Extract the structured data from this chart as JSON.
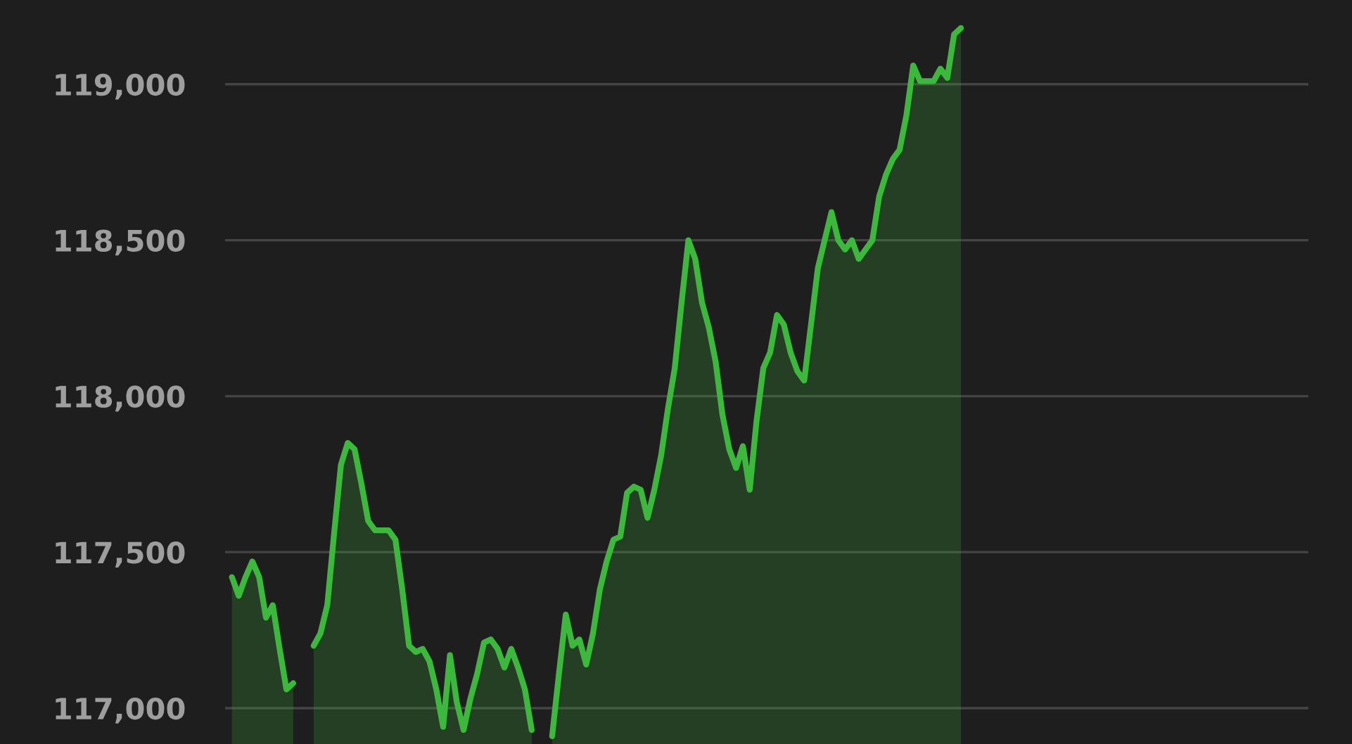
{
  "chart_data": {
    "type": "area",
    "categories": [
      null,
      null,
      null,
      null,
      null,
      null,
      null,
      null,
      null,
      null,
      null,
      null,
      null,
      null,
      null,
      null,
      null,
      null,
      null,
      null,
      null,
      null,
      null,
      null,
      null,
      null,
      null,
      null,
      null,
      null,
      null,
      null,
      null,
      null,
      null,
      null,
      null,
      null,
      null,
      null,
      null,
      null,
      null,
      null,
      null,
      null,
      null,
      null,
      null,
      null,
      null,
      null,
      null,
      null,
      null,
      null,
      null,
      null,
      null,
      null,
      null,
      null,
      null,
      null,
      null,
      null,
      null,
      null,
      null,
      null,
      null,
      null,
      null,
      null,
      null,
      null,
      null,
      null,
      null,
      null,
      null,
      null,
      null,
      null,
      null,
      null,
      null,
      null,
      null,
      null,
      null,
      null,
      null,
      null,
      null,
      null,
      null,
      null,
      null,
      null,
      null,
      null,
      null,
      null,
      null,
      null,
      null,
      null,
      null,
      null,
      null,
      null,
      null,
      null,
      null,
      null,
      null,
      null,
      null,
      null,
      null,
      null,
      null,
      null,
      null,
      null,
      null,
      null,
      null,
      null,
      null,
      null,
      null,
      null,
      null,
      null,
      null,
      null,
      null,
      null,
      null,
      null,
      null,
      null,
      null,
      null,
      null,
      null,
      null,
      null,
      null,
      null,
      null,
      null,
      null,
      null,
      null,
      null
    ],
    "series": [
      {
        "color": "#3cb83c",
        "values": [
          117420,
          117360,
          117420,
          117470,
          117420,
          117290,
          117330,
          117190,
          117060,
          117080,
          null,
          null,
          117200,
          117240,
          117330,
          117560,
          117780,
          117850,
          117830,
          117720,
          117600,
          117570,
          117570,
          117570,
          117540,
          117380,
          117200,
          117180,
          117190,
          117150,
          117060,
          116940,
          117170,
          117020,
          116930,
          117030,
          117110,
          117210,
          117220,
          117190,
          117130,
          117190,
          117130,
          117060,
          116930,
          null,
          null,
          116910,
          117110,
          117300,
          117200,
          117220,
          117140,
          117240,
          117380,
          117470,
          117540,
          117550,
          117690,
          117710,
          117700,
          117610,
          117700,
          117810,
          117960,
          118090,
          118300,
          118500,
          118440,
          118300,
          118220,
          118110,
          117940,
          117830,
          117770,
          117840,
          117700,
          117920,
          118090,
          118140,
          118260,
          118230,
          118140,
          118080,
          118050,
          118230,
          118410,
          118500,
          118590,
          118500,
          118470,
          118500,
          118440,
          118470,
          118500,
          118640,
          118710,
          118760,
          118790,
          118900,
          119060,
          119010,
          119010,
          119010,
          119050,
          119020,
          119160,
          119180,
          null,
          null,
          null,
          null,
          null,
          null,
          null,
          null,
          null,
          null,
          null,
          null,
          null,
          null,
          null,
          null,
          null,
          null,
          null,
          null,
          null,
          null,
          null,
          null,
          null,
          null,
          null,
          null,
          null,
          null,
          null,
          null,
          null,
          null,
          null,
          null,
          null,
          null,
          null,
          null,
          null,
          null,
          null,
          null,
          null,
          null,
          null,
          null,
          null,
          null
        ]
      }
    ],
    "ylim": [
      116885,
      119270
    ],
    "yticks": [
      {
        "value": 117000,
        "label": "117,000"
      },
      {
        "value": 117500,
        "label": "117,500"
      },
      {
        "value": 118000,
        "label": "118,000"
      },
      {
        "value": 118500,
        "label": "118,500"
      },
      {
        "value": 119000,
        "label": "119,000"
      }
    ],
    "grid": "y",
    "tick_labels": "y"
  }
}
